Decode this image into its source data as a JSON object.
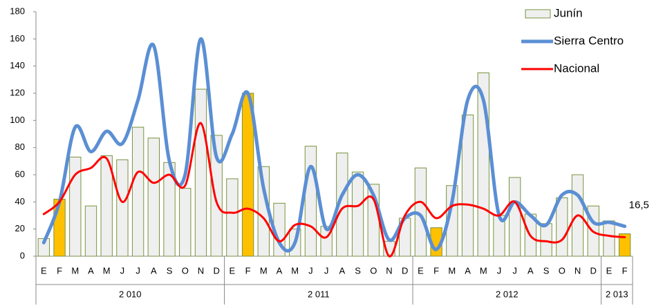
{
  "chart_data": {
    "type": "bar-line",
    "categories": [
      "E",
      "F",
      "M",
      "A",
      "M",
      "J",
      "J",
      "A",
      "S",
      "O",
      "N",
      "D",
      "E",
      "F",
      "M",
      "A",
      "M",
      "J",
      "J",
      "A",
      "S",
      "O",
      "N",
      "D",
      "E",
      "F",
      "M",
      "A",
      "M",
      "J",
      "J",
      "A",
      "S",
      "O",
      "N",
      "D",
      "E",
      "F"
    ],
    "years": [
      "2 010",
      "2 010",
      "2 010",
      "2 010",
      "2 010",
      "2 010",
      "2 010",
      "2 010",
      "2 010",
      "2 010",
      "2 010",
      "2 010",
      "2 011",
      "2 011",
      "2 011",
      "2 011",
      "2 011",
      "2 011",
      "2 011",
      "2 011",
      "2 011",
      "2 011",
      "2 011",
      "2 011",
      "2 012",
      "2 012",
      "2 012",
      "2 012",
      "2 012",
      "2 012",
      "2 012",
      "2 012",
      "2 012",
      "2 012",
      "2 012",
      "2 012",
      "2 013",
      "2 013"
    ],
    "series": [
      {
        "name": "Junín",
        "kind": "bar",
        "color": "#efefef",
        "edge": "#77933c",
        "colors": [
          "#efefef",
          "#ffc000",
          "#efefef",
          "#efefef",
          "#efefef",
          "#efefef",
          "#efefef",
          "#efefef",
          "#efefef",
          "#efefef",
          "#efefef",
          "#efefef",
          "#efefef",
          "#ffc000",
          "#efefef",
          "#efefef",
          "#efefef",
          "#efefef",
          "#efefef",
          "#efefef",
          "#efefef",
          "#efefef",
          "#efefef",
          "#efefef",
          "#efefef",
          "#ffc000",
          "#efefef",
          "#efefef",
          "#efefef",
          "#efefef",
          "#efefef",
          "#efefef",
          "#efefef",
          "#efefef",
          "#efefef",
          "#efefef",
          "#efefef",
          "#ffc000"
        ],
        "values": [
          13,
          42,
          73,
          37,
          74,
          71,
          95,
          87,
          69,
          50,
          123,
          89,
          57,
          120,
          66,
          39,
          20,
          81,
          22,
          76,
          62,
          53,
          11,
          28,
          65,
          21,
          52,
          104,
          135,
          30,
          58,
          31,
          24,
          43,
          60,
          37,
          26,
          16.5
        ],
        "value_labels": [
          null,
          null,
          null,
          null,
          null,
          null,
          null,
          null,
          null,
          null,
          null,
          null,
          null,
          null,
          null,
          null,
          null,
          null,
          null,
          null,
          null,
          null,
          null,
          null,
          null,
          null,
          null,
          null,
          null,
          null,
          null,
          null,
          null,
          null,
          null,
          null,
          null,
          "16,5"
        ]
      },
      {
        "name": "Sierra Centro",
        "kind": "line",
        "color": "#5b8fd4",
        "values": [
          10,
          40,
          95,
          77,
          92,
          83,
          115,
          155,
          70,
          60,
          160,
          73,
          90,
          120,
          50,
          10,
          10,
          66,
          20,
          45,
          60,
          45,
          12,
          28,
          30,
          5,
          40,
          115,
          115,
          30,
          40,
          30,
          23,
          45,
          45,
          25,
          25,
          22
        ]
      },
      {
        "name": "Nacional",
        "kind": "line",
        "color": "#ff0000",
        "values": [
          31,
          40,
          60,
          65,
          72,
          40,
          62,
          54,
          60,
          52,
          98,
          40,
          32,
          35,
          28,
          11,
          23,
          22,
          14,
          35,
          37,
          42,
          0,
          30,
          40,
          28,
          37,
          38,
          35,
          30,
          40,
          15,
          11,
          12,
          30,
          18,
          15,
          14
        ]
      }
    ],
    "ylim": [
      0,
      180
    ],
    "yticks": [
      0,
      20,
      40,
      60,
      80,
      100,
      120,
      140,
      160,
      180
    ],
    "grid": false,
    "legend": "top-right"
  }
}
